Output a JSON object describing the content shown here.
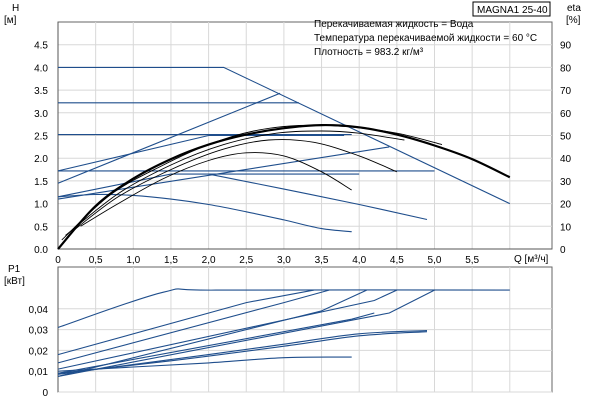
{
  "chart_data": [
    {
      "type": "line",
      "title": "",
      "model_label": "MAGNA1 25-40",
      "annotations": [
        "Перекачиваемая жидкость = Вода",
        "Температура перекачиваемой жидкости = 60 °C",
        "Плотность = 983.2 кг/м³"
      ],
      "xlabel": "Q [м³/ч]",
      "ylabel_left": [
        "H",
        "[м]"
      ],
      "ylabel_right": [
        "eta",
        "[%]"
      ],
      "xlim": [
        0,
        6
      ],
      "ylim": [
        0,
        5
      ],
      "ylim_right": [
        0,
        100
      ],
      "x_ticks": [
        "0",
        "0,5",
        "1,0",
        "1,5",
        "2,0",
        "2,5",
        "3,0",
        "3,5",
        "4,0",
        "4,5",
        "5,0",
        "5,5"
      ],
      "y_ticks": [
        "0.0",
        "0.5",
        "1.0",
        "1.5",
        "2.0",
        "2.5",
        "3.0",
        "3.5",
        "4.0",
        "4.5"
      ],
      "y_ticks_right": [
        "0",
        "10",
        "20",
        "30",
        "40",
        "50",
        "60",
        "70",
        "80",
        "90"
      ],
      "grid": true,
      "colors": {
        "curve": "#1f4e8c",
        "efficiency": "#000000"
      },
      "series": [
        {
          "kind": "blue",
          "points": [
            [
              0,
              4.0
            ],
            [
              2.2,
              4.0
            ],
            [
              6.0,
              1.0
            ]
          ]
        },
        {
          "kind": "blue",
          "points": [
            [
              0,
              3.22
            ],
            [
              3.2,
              3.22
            ]
          ]
        },
        {
          "kind": "blue",
          "points": [
            [
              0,
              2.52
            ],
            [
              3.9,
              2.52
            ]
          ]
        },
        {
          "kind": "blue",
          "points": [
            [
              0,
              1.72
            ],
            [
              5.0,
              1.72
            ]
          ]
        },
        {
          "kind": "blue",
          "points": [
            [
              0,
              1.45
            ],
            [
              2.95,
              3.43
            ]
          ]
        },
        {
          "kind": "blue",
          "points": [
            [
              0,
              1.72
            ],
            [
              2.0,
              2.5
            ],
            [
              3.8,
              2.5
            ]
          ]
        },
        {
          "kind": "blue",
          "points": [
            [
              0,
              1.1
            ],
            [
              4.4,
              2.25
            ]
          ]
        },
        {
          "kind": "blue",
          "points": [
            [
              0,
              1.15
            ],
            [
              1.5,
              1.65
            ],
            [
              4.0,
              1.65
            ]
          ]
        },
        {
          "kind": "blue",
          "points": [
            [
              0,
              1.15
            ],
            [
              0.5,
              1.2
            ],
            [
              1.0,
              1.18
            ],
            [
              1.5,
              1.1
            ],
            [
              2.0,
              0.98
            ],
            [
              2.5,
              0.82
            ],
            [
              3.0,
              0.64
            ],
            [
              3.5,
              0.45
            ],
            [
              3.9,
              0.38
            ]
          ]
        },
        {
          "kind": "blue",
          "points": [
            [
              2.0,
              1.65
            ],
            [
              3.0,
              1.32
            ],
            [
              4.0,
              0.98
            ],
            [
              4.9,
              0.65
            ]
          ]
        },
        {
          "kind": "eta",
          "points": [
            [
              0.3,
              0.5
            ],
            [
              0.8,
              1.0
            ],
            [
              1.4,
              1.55
            ],
            [
              2.0,
              1.95
            ],
            [
              2.5,
              2.12
            ],
            [
              3.0,
              2.05
            ],
            [
              3.5,
              1.7
            ],
            [
              3.9,
              1.3
            ]
          ]
        },
        {
          "kind": "eta",
          "points": [
            [
              0.2,
              0.4
            ],
            [
              0.8,
              1.15
            ],
            [
              1.5,
              1.75
            ],
            [
              2.2,
              2.2
            ],
            [
              2.8,
              2.4
            ],
            [
              3.4,
              2.35
            ],
            [
              4.0,
              2.05
            ],
            [
              4.5,
              1.7
            ]
          ]
        },
        {
          "kind": "eta",
          "points": [
            [
              0.1,
              0.3
            ],
            [
              0.8,
              1.22
            ],
            [
              1.5,
              1.85
            ],
            [
              2.2,
              2.3
            ],
            [
              2.9,
              2.55
            ],
            [
              3.5,
              2.6
            ],
            [
              4.0,
              2.55
            ],
            [
              4.6,
              2.4
            ]
          ]
        },
        {
          "kind": "eta",
          "points": [
            [
              0.05,
              0.2
            ],
            [
              0.7,
              1.2
            ],
            [
              1.4,
              1.85
            ],
            [
              2.0,
              2.3
            ],
            [
              2.6,
              2.6
            ],
            [
              3.2,
              2.72
            ],
            [
              3.8,
              2.7
            ],
            [
              4.5,
              2.55
            ],
            [
              5.1,
              2.3
            ]
          ]
        },
        {
          "kind": "eta-bold",
          "points": [
            [
              0,
              0
            ],
            [
              0.5,
              0.95
            ],
            [
              1.0,
              1.55
            ],
            [
              1.5,
              1.98
            ],
            [
              2.0,
              2.3
            ],
            [
              2.5,
              2.52
            ],
            [
              3.0,
              2.66
            ],
            [
              3.5,
              2.73
            ],
            [
              4.0,
              2.68
            ],
            [
              4.5,
              2.52
            ],
            [
              5.0,
              2.28
            ],
            [
              5.5,
              1.98
            ],
            [
              6.0,
              1.58
            ]
          ]
        }
      ]
    },
    {
      "type": "line",
      "title": "",
      "ylabel": [
        "P1",
        "[кВт]"
      ],
      "xlim": [
        0,
        6
      ],
      "ylim": [
        0,
        0.05
      ],
      "y_ticks": [
        "0",
        "0,01",
        "0,02",
        "0,03",
        "0,04"
      ],
      "grid": true,
      "series": [
        {
          "kind": "blue",
          "points": [
            [
              0,
              0.031
            ],
            [
              1.4,
              0.048
            ],
            [
              2.1,
              0.049
            ],
            [
              6.0,
              0.049
            ]
          ]
        },
        {
          "kind": "blue",
          "points": [
            [
              0,
              0.018
            ],
            [
              2.5,
              0.043
            ],
            [
              3.4,
              0.049
            ]
          ]
        },
        {
          "kind": "blue",
          "points": [
            [
              0,
              0.014
            ],
            [
              3.0,
              0.043
            ],
            [
              3.6,
              0.049
            ]
          ]
        },
        {
          "kind": "blue",
          "points": [
            [
              0,
              0.0075
            ],
            [
              3.5,
              0.039
            ],
            [
              4.1,
              0.049
            ]
          ]
        },
        {
          "kind": "blue",
          "points": [
            [
              0,
              0.009
            ],
            [
              3.9,
              0.035
            ],
            [
              4.2,
              0.038
            ]
          ]
        },
        {
          "kind": "blue",
          "points": [
            [
              0,
              0.011
            ],
            [
              4.2,
              0.044
            ],
            [
              4.5,
              0.049
            ]
          ]
        },
        {
          "kind": "blue",
          "points": [
            [
              0,
              0.0075
            ],
            [
              4.4,
              0.038
            ],
            [
              5.0,
              0.049
            ]
          ]
        },
        {
          "kind": "blue",
          "points": [
            [
              0,
              0.009
            ],
            [
              1.5,
              0.015
            ],
            [
              3.0,
              0.022
            ],
            [
              4.0,
              0.027
            ],
            [
              4.9,
              0.029
            ]
          ]
        },
        {
          "kind": "blue",
          "points": [
            [
              0,
              0.01
            ],
            [
              1.0,
              0.012
            ],
            [
              2.0,
              0.014
            ],
            [
              3.0,
              0.0165
            ],
            [
              3.9,
              0.0168
            ]
          ]
        },
        {
          "kind": "blue",
          "points": [
            [
              0,
              0.0085
            ],
            [
              2.0,
              0.018
            ],
            [
              3.0,
              0.023
            ],
            [
              4.0,
              0.028
            ],
            [
              4.9,
              0.0295
            ]
          ]
        }
      ]
    }
  ]
}
